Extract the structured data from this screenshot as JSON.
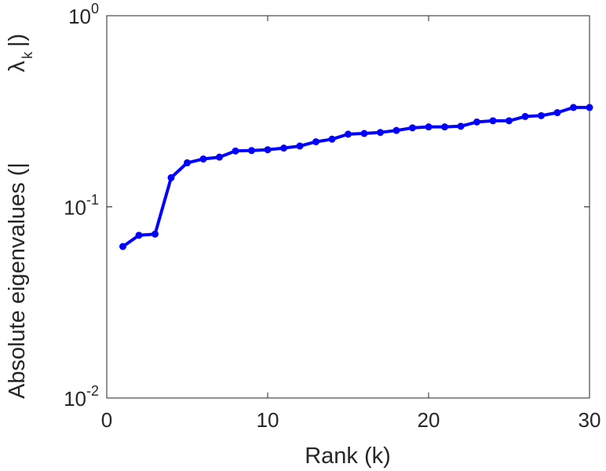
{
  "chart_data": {
    "type": "line",
    "title": "",
    "xlabel": "Rank (k)",
    "ylabel": "Absolute eigenvalues (|",
    "ylabel_symbol": "λ",
    "ylabel_subscript": "k",
    "ylabel_close": "|)",
    "xlim": [
      0,
      30
    ],
    "ylim": [
      0.01,
      1
    ],
    "yscale": "log",
    "grid": false,
    "xticks": [
      0,
      10,
      20,
      30
    ],
    "xtick_labels": [
      "0",
      "10",
      "20",
      "30"
    ],
    "yticks": [
      0.01,
      0.1,
      1
    ],
    "ytick_base": [
      "10",
      "10",
      "10"
    ],
    "ytick_exponent": [
      "-2",
      "-1",
      "0"
    ],
    "series": [
      {
        "color": "#0000ff",
        "marker": "circle",
        "x": [
          1,
          2,
          3,
          4,
          5,
          6,
          7,
          8,
          9,
          10,
          11,
          12,
          13,
          14,
          15,
          16,
          17,
          18,
          19,
          20,
          21,
          22,
          23,
          24,
          25,
          26,
          27,
          28,
          29,
          30
        ],
        "y": [
          0.062,
          0.071,
          0.072,
          0.142,
          0.17,
          0.178,
          0.182,
          0.196,
          0.197,
          0.199,
          0.203,
          0.208,
          0.219,
          0.226,
          0.24,
          0.242,
          0.245,
          0.251,
          0.259,
          0.262,
          0.262,
          0.264,
          0.278,
          0.282,
          0.282,
          0.297,
          0.3,
          0.311,
          0.331,
          0.331
        ]
      }
    ]
  }
}
